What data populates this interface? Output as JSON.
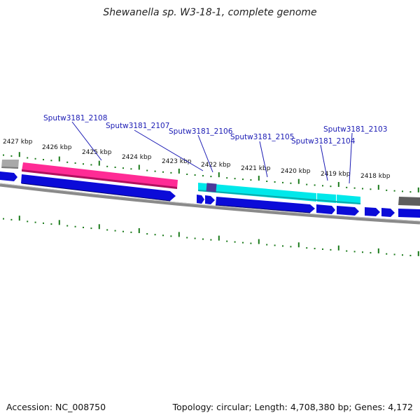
{
  "title": "Shewanella sp. W3-18-1, complete genome",
  "accession": "Accession: NC_008750",
  "summary": "Topology: circular; Length: 4,708,380 bp; Genes: 4,172",
  "tick_labels": [
    "2427 kbp",
    "2426 kbp",
    "2425 kbp",
    "2424 kbp",
    "2423 kbp",
    "2422 kbp",
    "2421 kbp",
    "2420 kbp",
    "2419 kbp",
    "2418 kbp"
  ],
  "gene_labels": [
    "Sputw3181_2108",
    "Sputw3181_2107",
    "Sputw3181_2106",
    "Sputw3181_2105",
    "Sputw3181_2104",
    "Sputw3181_2103"
  ],
  "colors": {
    "cds": "#0b0bd8",
    "pseudo_gene": "#ff1f8f",
    "operon": "#00e5e8",
    "highlight": "#4b3a9a",
    "backbone": "#8a8a8a",
    "tick": "#1a7a1a",
    "gene_label": "#1a1ab4"
  }
}
